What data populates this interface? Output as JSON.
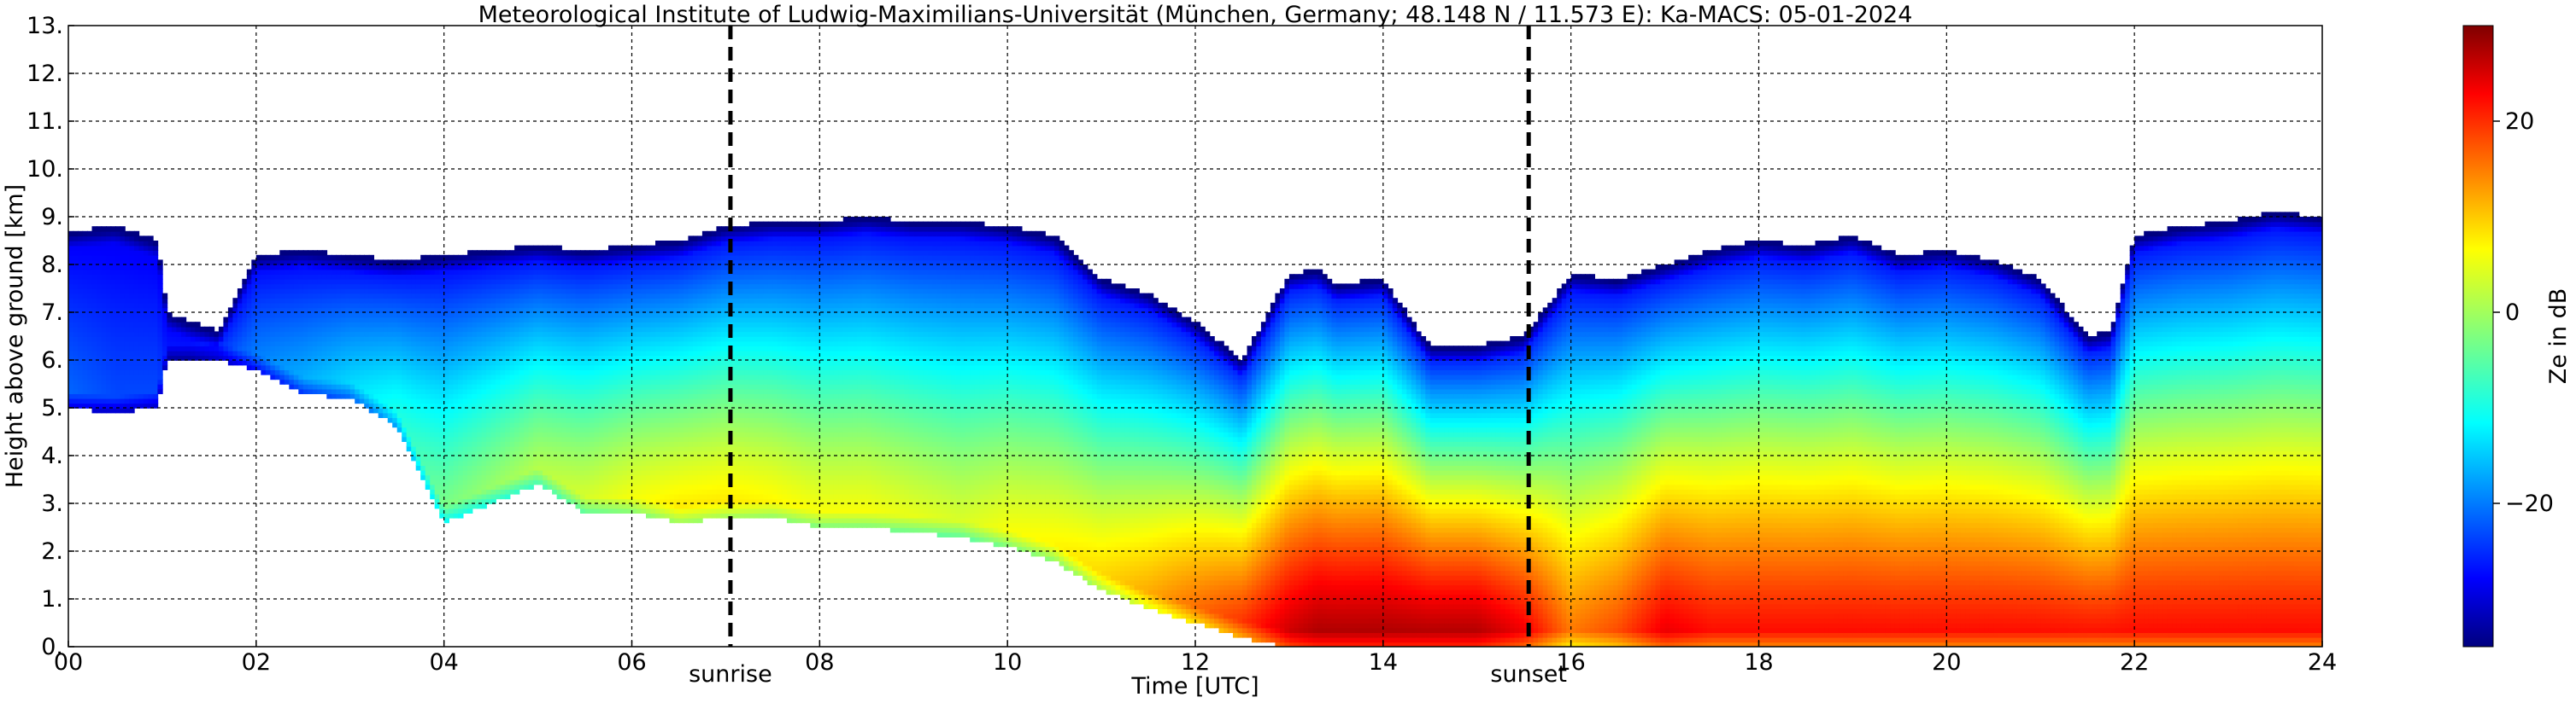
{
  "chart_data": {
    "type": "heatmap",
    "title": "Meteorological Institute of Ludwig-Maximilians-Universität (München, Germany; 48.148 N / 11.573 E):    Ka-MACS: 05-01-2024",
    "xlabel": "Time [UTC]",
    "ylabel": "Height above ground [km]",
    "xlim": [
      0,
      24
    ],
    "ylim": [
      0,
      13
    ],
    "x_ticks": [
      0,
      2,
      4,
      6,
      8,
      10,
      12,
      14,
      16,
      18,
      20,
      22,
      24
    ],
    "x_tick_labels": [
      "00",
      "02",
      "04",
      "06",
      "08",
      "10",
      "12",
      "14",
      "16",
      "18",
      "20",
      "22",
      "24"
    ],
    "y_ticks": [
      0,
      1,
      2,
      3,
      4,
      5,
      6,
      7,
      8,
      9,
      10,
      11,
      12,
      13
    ],
    "y_tick_labels": [
      "0.",
      "1.",
      "2.",
      "3.",
      "4.",
      "5.",
      "6.",
      "7.",
      "8.",
      "9.",
      "10.",
      "11.",
      "12.",
      "13."
    ],
    "grid": true,
    "colorbar": {
      "label": "Ze in dB",
      "range": [
        -35,
        30
      ],
      "ticks": [
        20,
        0,
        -20
      ],
      "tick_labels": [
        "20",
        "0",
        "−20"
      ],
      "colormap": "jet"
    },
    "vertical_markers": [
      {
        "time": 7.05,
        "label": "sunrise"
      },
      {
        "time": 15.55,
        "label": "sunset"
      }
    ],
    "echo_profile": {
      "time": [
        0.0,
        0.5,
        0.95,
        1.05,
        1.3,
        1.6,
        2.0,
        2.5,
        3.0,
        3.5,
        4.0,
        4.5,
        5.0,
        5.5,
        6.0,
        6.5,
        7.0,
        7.5,
        8.0,
        8.5,
        9.0,
        9.5,
        10.0,
        10.5,
        11.0,
        11.5,
        12.0,
        12.5,
        13.0,
        13.3,
        13.5,
        14.0,
        14.5,
        15.0,
        15.5,
        16.0,
        16.5,
        17.0,
        17.5,
        18.0,
        18.5,
        19.0,
        19.5,
        20.0,
        20.5,
        21.0,
        21.5,
        21.75,
        22.0,
        22.5,
        23.0,
        23.5,
        24.0
      ],
      "echo_top_km": [
        8.7,
        8.8,
        8.5,
        7.0,
        6.8,
        6.6,
        8.2,
        8.3,
        8.2,
        8.1,
        8.2,
        8.3,
        8.4,
        8.3,
        8.4,
        8.5,
        8.8,
        8.9,
        8.9,
        9.0,
        8.9,
        8.9,
        8.8,
        8.6,
        7.7,
        7.4,
        6.8,
        6.0,
        7.8,
        7.9,
        7.6,
        7.7,
        6.3,
        6.3,
        6.5,
        7.8,
        7.7,
        8.0,
        8.3,
        8.5,
        8.4,
        8.6,
        8.2,
        8.3,
        8.1,
        7.7,
        6.5,
        6.6,
        8.6,
        8.8,
        8.9,
        9.1,
        9.0
      ],
      "echo_base_km": [
        5.0,
        4.9,
        5.0,
        6.0,
        6.0,
        6.0,
        5.8,
        5.3,
        5.2,
        4.6,
        2.6,
        3.0,
        3.4,
        2.8,
        2.8,
        2.6,
        2.7,
        2.7,
        2.5,
        2.5,
        2.4,
        2.3,
        2.1,
        1.8,
        1.2,
        0.8,
        0.5,
        0.2,
        0.0,
        0.0,
        0.0,
        0.0,
        0.0,
        0.0,
        0.0,
        0.0,
        0.0,
        0.0,
        0.0,
        0.0,
        0.0,
        0.0,
        0.0,
        0.0,
        0.0,
        0.0,
        0.0,
        0.0,
        0.0,
        0.0,
        0.0,
        0.0,
        0.0
      ],
      "max_ze_db": [
        -20,
        -22,
        -22,
        -25,
        -25,
        -22,
        -18,
        -15,
        -12,
        -8,
        -2,
        0,
        2,
        4,
        6,
        8,
        8,
        7,
        6,
        6,
        5,
        4,
        6,
        7,
        9,
        12,
        16,
        20,
        26,
        28,
        28,
        28,
        28,
        28,
        24,
        15,
        18,
        24,
        22,
        22,
        22,
        22,
        22,
        22,
        22,
        22,
        22,
        22,
        22,
        22,
        22,
        22,
        22
      ]
    }
  }
}
